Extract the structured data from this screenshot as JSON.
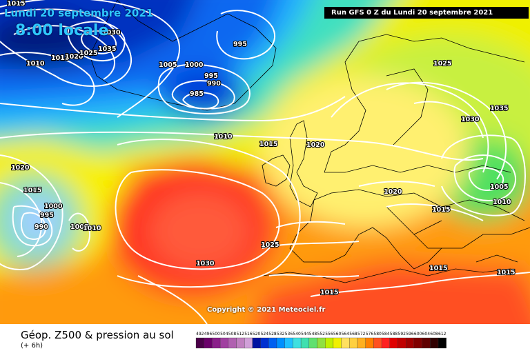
{
  "header": {
    "date": "Lundi 20 septembre 2021",
    "time": "8:00 locale",
    "run": "Run GFS 0 Z du Lundi 20 septembre 2021"
  },
  "copyright": "Copyright © 2021 Meteociel.fr",
  "product": {
    "title": "Géop. Z500 & pression au sol",
    "step": "(+ 6h)"
  },
  "isobar_labels": [
    "1015",
    "1010",
    "1030",
    "1035",
    "1015",
    "1020",
    "1025",
    "995",
    "1005",
    "1000",
    "995",
    "990",
    "985",
    "1010",
    "1015",
    "1020",
    "1025",
    "1030",
    "1035",
    "1020",
    "1015",
    "1000",
    "995",
    "990",
    "1005",
    "1010",
    "1025",
    "1030",
    "1015",
    "1020",
    "1030",
    "1005",
    "1010",
    "1015",
    "1015",
    "1015"
  ],
  "legend": {
    "ticks": [
      "492",
      "496",
      "500",
      "504",
      "508",
      "512",
      "516",
      "520",
      "524",
      "528",
      "532",
      "536",
      "540",
      "544",
      "548",
      "552",
      "556",
      "560",
      "564",
      "568",
      "572",
      "576",
      "580",
      "584",
      "588",
      "592",
      "596",
      "600",
      "604",
      "608",
      "612"
    ],
    "colors": [
      "#4a0048",
      "#6a006a",
      "#8a1e8a",
      "#a040a0",
      "#b060b0",
      "#c080c0",
      "#d0a0d8",
      "#0010a0",
      "#0030d0",
      "#0060f0",
      "#0090ff",
      "#20c0ff",
      "#40e0e0",
      "#40e0b0",
      "#60e070",
      "#90e040",
      "#c0f000",
      "#f0f000",
      "#ffe060",
      "#ffd040",
      "#ffb020",
      "#ff8000",
      "#ff5020",
      "#ff2020",
      "#e00000",
      "#c00000",
      "#a00000",
      "#800000",
      "#600000",
      "#300000",
      "#000000"
    ]
  }
}
